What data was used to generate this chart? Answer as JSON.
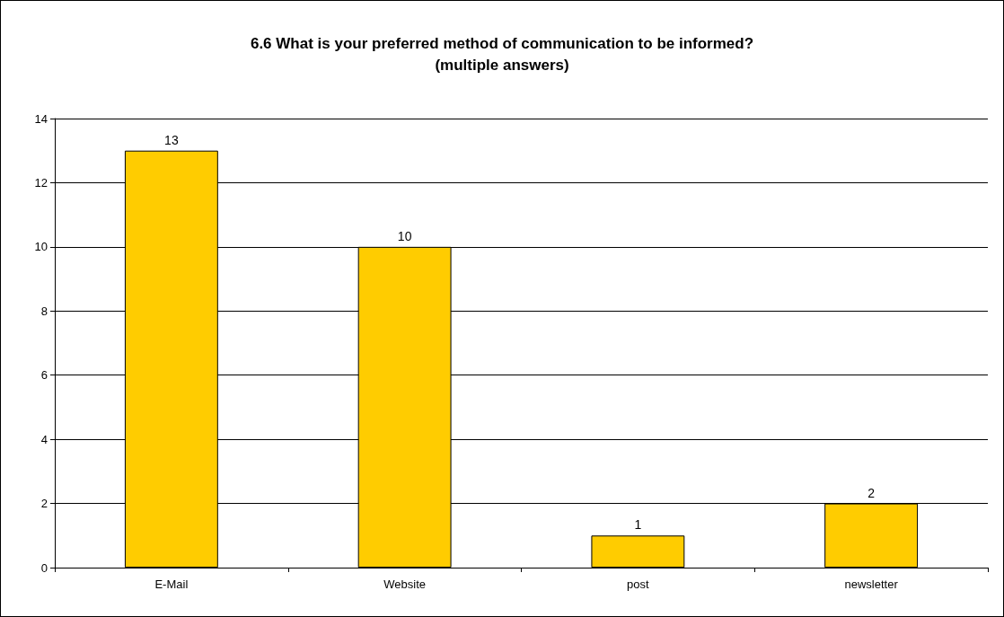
{
  "chart_data": {
    "type": "bar",
    "title": "6.6 What is your preferred method of communication to be informed?\n(multiple answers)",
    "categories": [
      "E-Mail",
      "Website",
      "post",
      "newsletter"
    ],
    "values": [
      13,
      10,
      1,
      2
    ],
    "color": "#ffcc00",
    "ylim": [
      0,
      14
    ],
    "yticks": [
      0,
      2,
      4,
      6,
      8,
      10,
      12,
      14
    ],
    "grid": "y",
    "data_labels": true
  }
}
